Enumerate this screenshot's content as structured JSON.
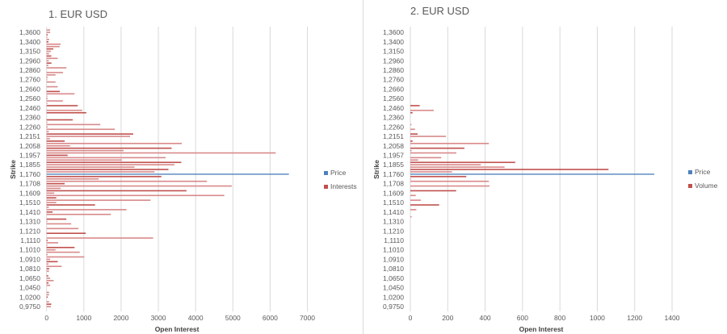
{
  "chart_data": [
    {
      "type": "bar",
      "orientation": "horizontal",
      "title": "1. EUR USD",
      "xlabel": "Open Interest",
      "ylabel": "Strike",
      "xlim": [
        0,
        7000
      ],
      "x_ticks": [
        "0",
        "1000",
        "2000",
        "3000",
        "4000",
        "5000",
        "6000",
        "7000"
      ],
      "y_tick_labels": [
        "1,3600",
        "1,3400",
        "1,3150",
        "1,2960",
        "1,2860",
        "1,2760",
        "1,2660",
        "1,2560",
        "1,2460",
        "1,2360",
        "1,2260",
        "1,2151",
        "1,2058",
        "1,1957",
        "1,1855",
        "1,1760",
        "1,1708",
        "1,1609",
        "1,1510",
        "1,1410",
        "1,1310",
        "1,1210",
        "1,1110",
        "1,1010",
        "1,0910",
        "1,0810",
        "1,0650",
        "1,0450",
        "1,0200",
        "0,9750"
      ],
      "grid": true,
      "legend_position": "right",
      "series": [
        {
          "name": "Price",
          "color": "#4f81bd",
          "row": 61,
          "strike": "1,1760",
          "value": 6505
        },
        {
          "name": "Interests",
          "color": "#c0504d",
          "values": [
            95,
            95,
            30,
            20,
            70,
            50,
            375,
            350,
            180,
            115,
            65,
            125,
            300,
            60,
            130,
            50,
            530,
            0,
            440,
            240,
            20,
            15,
            240,
            0,
            300,
            0,
            355,
            750,
            20,
            20,
            435,
            20,
            835,
            0,
            955,
            1065,
            0,
            0,
            700,
            20,
            1440,
            20,
            1830,
            60,
            2325,
            2240,
            90,
            485,
            3630,
            630,
            3355,
            2065,
            6150,
            565,
            3195,
            2020,
            3615,
            3430,
            2360,
            3270,
            2900,
            0,
            3080,
            1400,
            4305,
            485,
            4970,
            375,
            3755,
            205,
            4770,
            260,
            2790,
            260,
            1300,
            60,
            2145,
            160,
            1725,
            0,
            530,
            20,
            660,
            0,
            855,
            0,
            1050,
            0,
            2860,
            30,
            310,
            20,
            750,
            240,
            890,
            20,
            1010,
            95,
            300,
            50,
            405,
            70,
            65,
            0,
            45,
            95,
            190,
            50,
            95,
            0,
            0,
            65,
            65,
            30,
            0,
            65,
            125,
            115
          ]
        }
      ]
    },
    {
      "type": "bar",
      "orientation": "horizontal",
      "title": "2. EUR USD",
      "xlabel": "Open Interest",
      "ylabel": "Strike",
      "xlim": [
        0,
        1400
      ],
      "x_ticks": [
        "0",
        "200",
        "400",
        "600",
        "800",
        "1000",
        "1200",
        "1400"
      ],
      "y_tick_labels": [
        "1,3600",
        "1,3400",
        "1,3150",
        "1,2960",
        "1,2860",
        "1,2760",
        "1,2660",
        "1,2560",
        "1,2460",
        "1,2360",
        "1,2260",
        "1,2151",
        "1,2058",
        "1,1957",
        "1,1855",
        "1,1760",
        "1,1708",
        "1,1609",
        "1,1510",
        "1,1410",
        "1,1310",
        "1,1210",
        "1,1110",
        "1,1010",
        "1,0910",
        "1,0810",
        "1,0650",
        "1,0450",
        "1,0200",
        "0,9750"
      ],
      "grid": true,
      "legend_position": "right",
      "series": [
        {
          "name": "Price",
          "color": "#4f81bd",
          "row": 61,
          "strike": "1,1760",
          "value": 1305
        },
        {
          "name": "Volume",
          "color": "#c0504d",
          "values": [
            0,
            0,
            0,
            0,
            0,
            0,
            0,
            0,
            0,
            0,
            0,
            0,
            0,
            0,
            0,
            0,
            0,
            0,
            0,
            0,
            0,
            0,
            0,
            0,
            0,
            0,
            0,
            0,
            0,
            0,
            0,
            0,
            50,
            0,
            125,
            12,
            0,
            0,
            0,
            0,
            6,
            0,
            25,
            0,
            39,
            190,
            0,
            12,
            420,
            0,
            289,
            7,
            246,
            0,
            165,
            42,
            561,
            377,
            504,
            1060,
            223,
            0,
            299,
            3,
            420,
            0,
            423,
            0,
            245,
            0,
            29,
            0,
            56,
            0,
            154,
            0,
            32,
            0,
            0,
            7,
            0,
            0,
            0,
            0,
            0,
            0,
            0,
            0,
            0,
            0,
            0,
            0,
            0,
            0,
            0,
            0,
            0,
            0,
            0,
            0,
            0,
            0,
            0,
            0,
            0,
            0,
            0,
            0,
            0,
            0,
            0,
            0,
            0,
            0,
            0,
            0,
            0,
            0
          ]
        }
      ]
    }
  ]
}
